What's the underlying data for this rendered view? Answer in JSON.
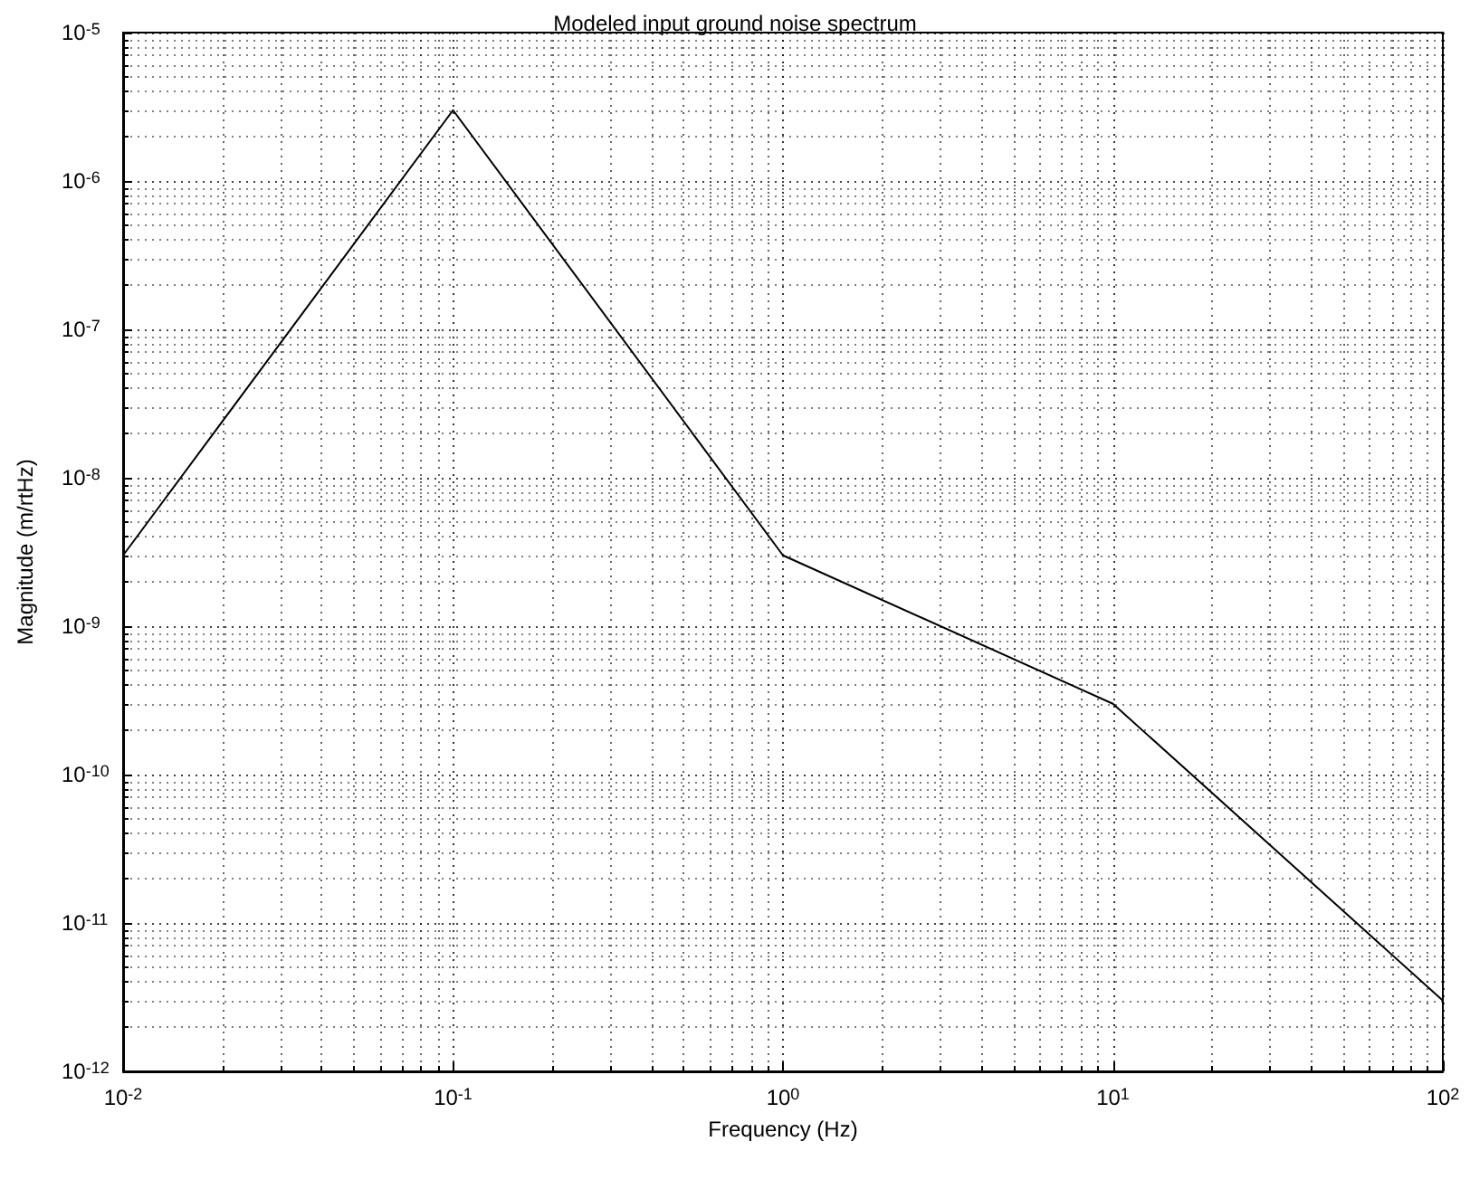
{
  "chart_data": {
    "type": "line",
    "title": "Modeled input ground noise spectrum",
    "xlabel": "Frequency (Hz)",
    "ylabel": "Magnitude (m/rtHz)",
    "x": [
      0.01,
      0.1,
      1,
      10,
      100
    ],
    "series": [
      {
        "color": "#000000",
        "values": [
          3e-09,
          3e-06,
          3e-09,
          3e-10,
          3e-12
        ]
      }
    ],
    "log": "xy",
    "grid": true,
    "marker": "none",
    "line_style": "solid",
    "xlim": [
      0.01,
      100
    ],
    "xticks": [
      {
        "value": 0.01,
        "label": "10$^{-2}$"
      },
      {
        "value": 0.1,
        "label": "10$^{-1}$"
      },
      {
        "value": 1,
        "label": "10$^{0}$"
      },
      {
        "value": 10,
        "label": "10$^{1}$"
      },
      {
        "value": 100,
        "label": "10$^{2}$"
      }
    ],
    "ylim": [
      1e-12,
      1e-05
    ],
    "yticks": [
      {
        "value": 1e-12,
        "label": "10$^{-12}$"
      },
      {
        "value": 1e-11,
        "label": "10$^{-11}$"
      },
      {
        "value": 1e-10,
        "label": "10$^{-10}$"
      },
      {
        "value": 1e-09,
        "label": "10$^{-9}$"
      },
      {
        "value": 1e-08,
        "label": "10$^{-8}$"
      },
      {
        "value": 1e-07,
        "label": "10$^{-7}$"
      },
      {
        "value": 1e-06,
        "label": "10$^{-6}$"
      },
      {
        "value": 1e-05,
        "label": "10$^{-5}$"
      }
    ]
  }
}
